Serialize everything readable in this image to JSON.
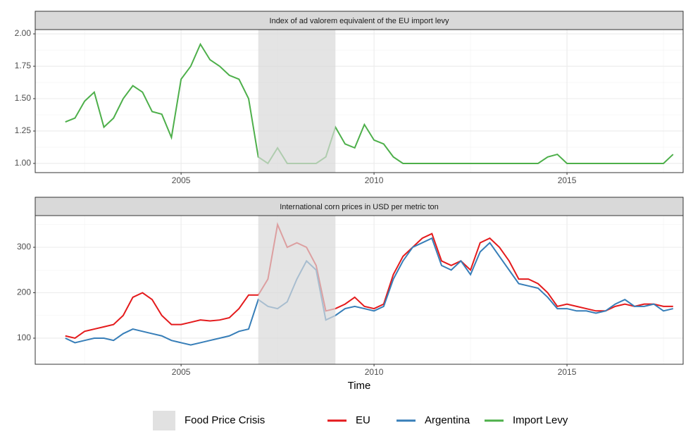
{
  "chart_data": [
    {
      "type": "line",
      "title": "Index of ad valorem equivalent of the EU import levy",
      "x": [
        2002,
        2002.25,
        2002.5,
        2002.75,
        2003,
        2003.25,
        2003.5,
        2003.75,
        2004,
        2004.25,
        2004.5,
        2004.75,
        2005,
        2005.25,
        2005.5,
        2005.75,
        2006,
        2006.25,
        2006.5,
        2006.75,
        2007,
        2007.25,
        2007.5,
        2007.75,
        2008,
        2008.25,
        2008.5,
        2008.75,
        2009,
        2009.25,
        2009.5,
        2009.75,
        2010,
        2010.25,
        2010.5,
        2010.75,
        2011,
        2011.25,
        2011.5,
        2011.75,
        2012,
        2012.25,
        2012.5,
        2012.75,
        2013,
        2013.25,
        2013.5,
        2013.75,
        2014,
        2014.25,
        2014.5,
        2014.75,
        2015,
        2015.25,
        2015.5,
        2015.75,
        2016,
        2016.25,
        2016.5,
        2016.75,
        2017,
        2017.25,
        2017.5,
        2017.75
      ],
      "series": [
        {
          "name": "Import Levy",
          "color": "#4daf4a",
          "values": [
            1.32,
            1.35,
            1.48,
            1.55,
            1.28,
            1.35,
            1.5,
            1.6,
            1.55,
            1.4,
            1.38,
            1.2,
            1.65,
            1.75,
            1.92,
            1.8,
            1.75,
            1.68,
            1.65,
            1.5,
            1.05,
            1,
            1.12,
            1,
            1,
            1,
            1,
            1.05,
            1.28,
            1.15,
            1.12,
            1.3,
            1.18,
            1.15,
            1.05,
            1,
            1,
            1,
            1,
            1,
            1,
            1,
            1,
            1,
            1,
            1,
            1,
            1,
            1,
            1,
            1.05,
            1.07,
            1,
            1,
            1,
            1,
            1,
            1,
            1,
            1,
            1,
            1,
            1,
            1.07
          ]
        }
      ],
      "xlim": [
        2001.22,
        2018.01
      ],
      "xticks": [
        2005,
        2010,
        2015
      ],
      "ylim": [
        0.929,
        2.033
      ],
      "yticks": [
        {
          "value": 1,
          "label": "1.00"
        },
        {
          "value": 1.25,
          "label": "1.25"
        },
        {
          "value": 1.5,
          "label": "1.50"
        },
        {
          "value": 1.75,
          "label": "1.75"
        },
        {
          "value": 2,
          "label": "2.00"
        }
      ],
      "grid": true
    },
    {
      "type": "line",
      "title": "International corn prices in USD per metric ton",
      "x_label": "Time",
      "x": [
        2002,
        2002.25,
        2002.5,
        2002.75,
        2003,
        2003.25,
        2003.5,
        2003.75,
        2004,
        2004.25,
        2004.5,
        2004.75,
        2005,
        2005.25,
        2005.5,
        2005.75,
        2006,
        2006.25,
        2006.5,
        2006.75,
        2007,
        2007.25,
        2007.5,
        2007.75,
        2008,
        2008.25,
        2008.5,
        2008.75,
        2009,
        2009.25,
        2009.5,
        2009.75,
        2010,
        2010.25,
        2010.5,
        2010.75,
        2011,
        2011.25,
        2011.5,
        2011.75,
        2012,
        2012.25,
        2012.5,
        2012.75,
        2013,
        2013.25,
        2013.5,
        2013.75,
        2014,
        2014.25,
        2014.5,
        2014.75,
        2015,
        2015.25,
        2015.5,
        2015.75,
        2016,
        2016.25,
        2016.5,
        2016.75,
        2017,
        2017.25,
        2017.5,
        2017.75
      ],
      "series": [
        {
          "name": "EU",
          "color": "#e41a1c",
          "values": [
            105,
            100,
            115,
            120,
            125,
            130,
            150,
            190,
            200,
            185,
            150,
            130,
            130,
            135,
            140,
            138,
            140,
            145,
            165,
            195,
            195,
            230,
            350,
            300,
            310,
            300,
            260,
            160,
            165,
            175,
            190,
            170,
            165,
            175,
            240,
            280,
            300,
            320,
            330,
            270,
            260,
            270,
            250,
            310,
            320,
            300,
            270,
            230,
            230,
            220,
            200,
            170,
            175,
            170,
            165,
            160,
            160,
            170,
            175,
            170,
            175,
            175,
            170,
            170
          ]
        },
        {
          "name": "Argentina",
          "color": "#377eb8",
          "values": [
            100,
            90,
            95,
            100,
            100,
            95,
            110,
            120,
            115,
            110,
            105,
            95,
            90,
            85,
            90,
            95,
            100,
            105,
            115,
            120,
            185,
            170,
            165,
            180,
            230,
            270,
            250,
            140,
            150,
            165,
            170,
            165,
            160,
            170,
            230,
            270,
            300,
            310,
            320,
            260,
            250,
            270,
            240,
            290,
            310,
            280,
            250,
            220,
            215,
            210,
            190,
            165,
            165,
            160,
            160,
            155,
            160,
            175,
            185,
            170,
            170,
            175,
            160,
            165
          ]
        }
      ],
      "xlim": [
        2001.22,
        2018.01
      ],
      "xticks": [
        2005,
        2010,
        2015
      ],
      "ylim": [
        42.6,
        369.8
      ],
      "yticks": [
        100,
        200,
        300
      ],
      "grid": true
    }
  ],
  "highlight": {
    "name": "Food Price Crisis",
    "x": [
      2007,
      2009
    ],
    "color": "#d9d9d9"
  }
}
